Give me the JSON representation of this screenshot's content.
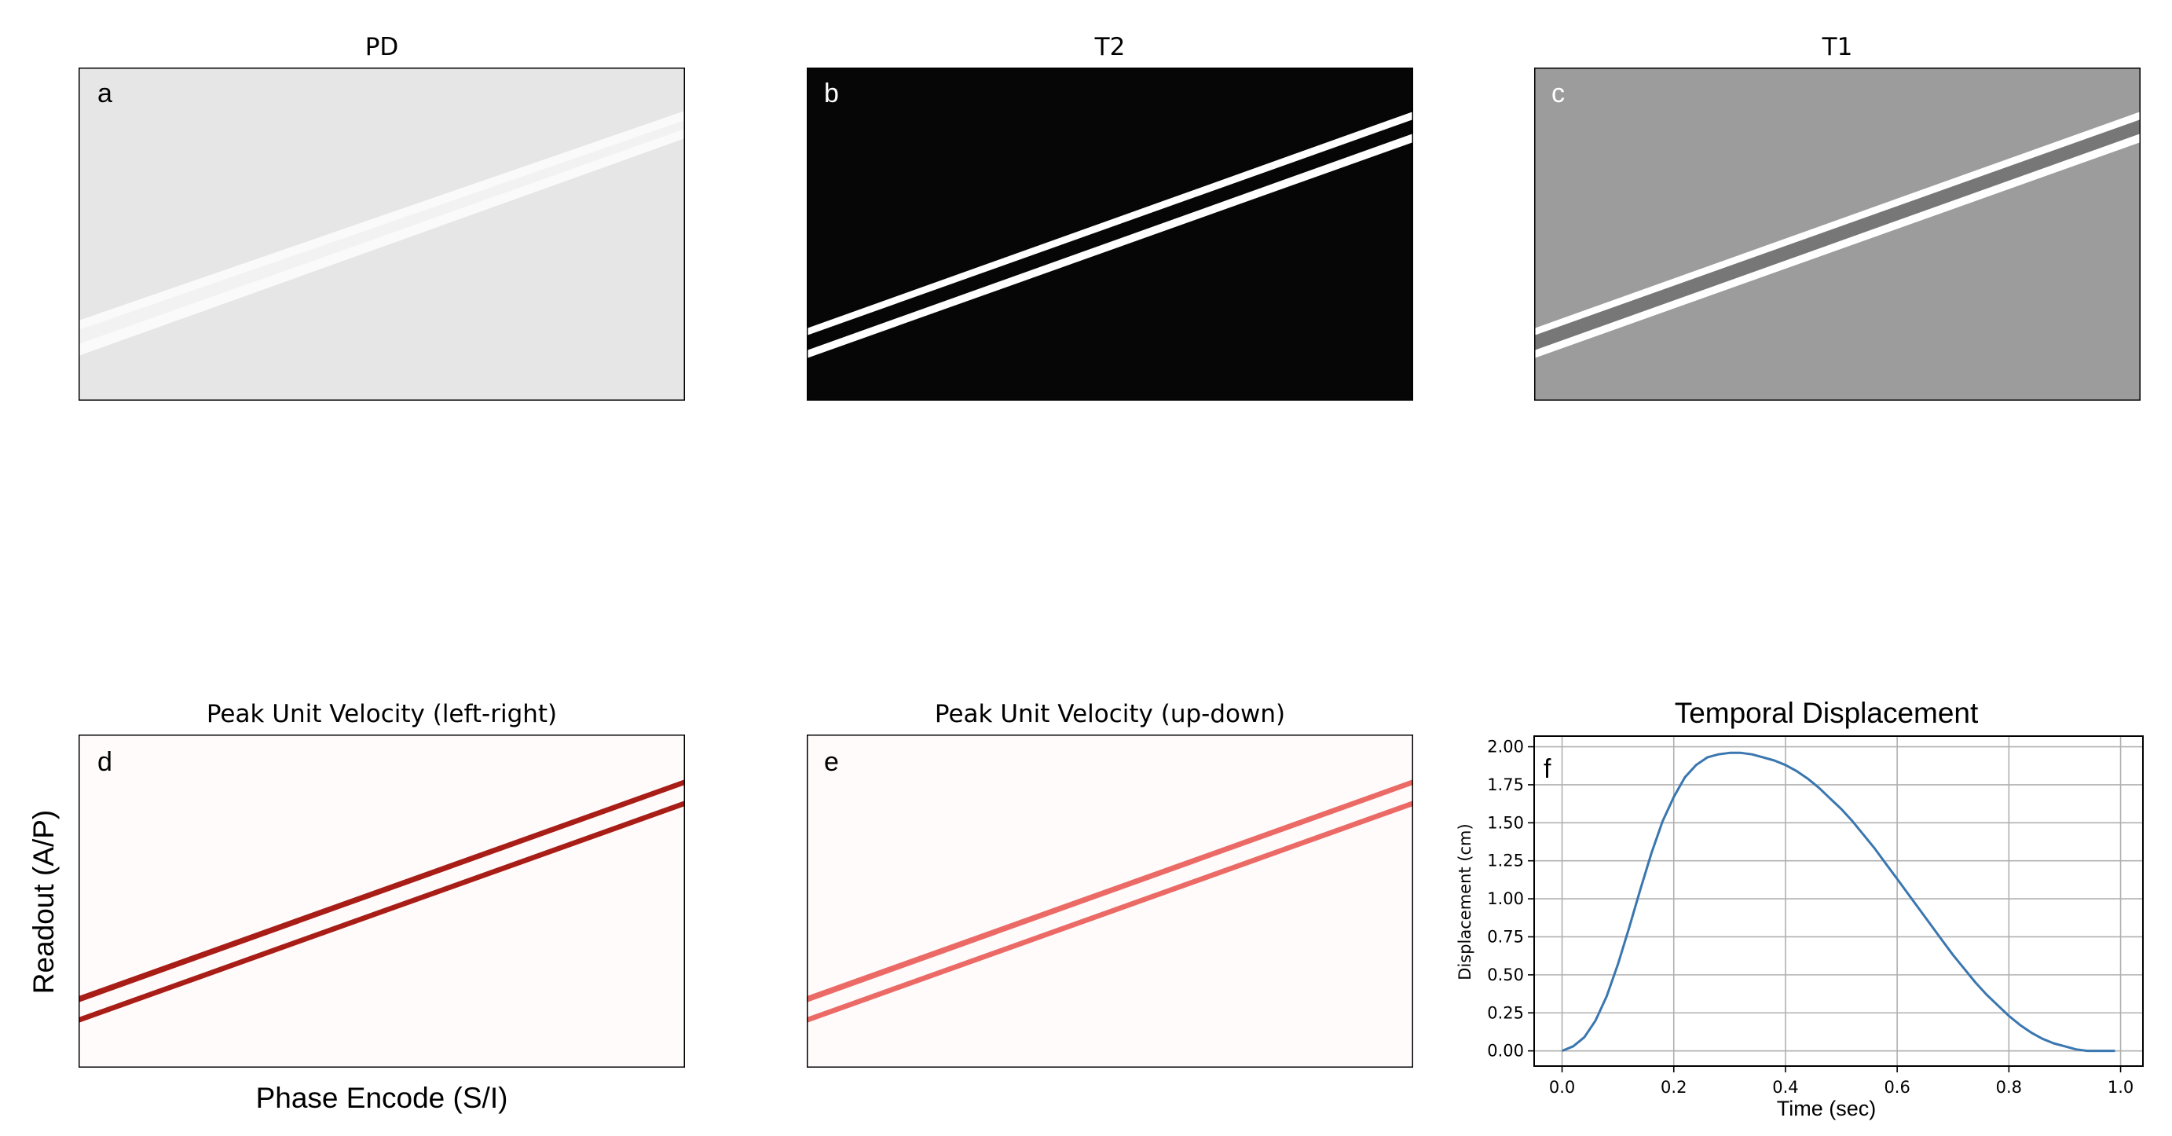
{
  "chart_data": [
    {
      "type": "heatmap",
      "title": "PD",
      "panel_label": "a",
      "background_color": "#e6e6e6",
      "stripe_colors": [
        "#fafafa",
        "#f2f2f2",
        "#fafafa"
      ]
    },
    {
      "type": "heatmap",
      "title": "T2",
      "panel_label": "b",
      "background_color": "#060606",
      "stripe_colors": [
        "#ffffff",
        "#060606",
        "#ffffff"
      ]
    },
    {
      "type": "heatmap",
      "title": "T1",
      "panel_label": "c",
      "background_color": "#9c9c9c",
      "stripe_colors": [
        "#ffffff",
        "#777777",
        "#ffffff"
      ]
    },
    {
      "type": "heatmap",
      "title": "Peak Unit Velocity (left-right)",
      "panel_label": "d",
      "background_color": "#fffbfb",
      "stripe_colors": [
        "#a91d17",
        "#fffbfb",
        "#a91d17"
      ],
      "xlabel": "Phase Encode (S/I)",
      "ylabel": "Readout (A/P)"
    },
    {
      "type": "heatmap",
      "title": "Peak Unit Velocity (up-down)",
      "panel_label": "e",
      "background_color": "#fffbfb",
      "stripe_colors": [
        "#ec6a66",
        "#fffbfb",
        "#ec6a66"
      ]
    },
    {
      "type": "line",
      "title": "Temporal Displacement",
      "panel_label": "f",
      "xlabel": "Time (sec)",
      "ylabel": "Displacement (cm)",
      "xlim": [
        -0.05,
        1.04
      ],
      "ylim": [
        -0.1,
        2.07
      ],
      "xticks": [
        "0.0",
        "0.2",
        "0.4",
        "0.6",
        "0.8",
        "1.0"
      ],
      "yticks": [
        "0.00",
        "0.25",
        "0.50",
        "0.75",
        "1.00",
        "1.25",
        "1.50",
        "1.75",
        "2.00"
      ],
      "grid": true,
      "series": [
        {
          "color": "#3a76af",
          "x": [
            0.0,
            0.02,
            0.04,
            0.06,
            0.08,
            0.1,
            0.12,
            0.14,
            0.16,
            0.18,
            0.2,
            0.22,
            0.24,
            0.26,
            0.28,
            0.3,
            0.32,
            0.34,
            0.36,
            0.38,
            0.4,
            0.42,
            0.44,
            0.46,
            0.48,
            0.5,
            0.52,
            0.54,
            0.56,
            0.58,
            0.6,
            0.62,
            0.64,
            0.66,
            0.68,
            0.7,
            0.72,
            0.74,
            0.76,
            0.78,
            0.8,
            0.82,
            0.84,
            0.86,
            0.88,
            0.9,
            0.92,
            0.94,
            0.96,
            0.98,
            0.99
          ],
          "y": [
            0.0,
            0.03,
            0.09,
            0.2,
            0.36,
            0.57,
            0.81,
            1.06,
            1.3,
            1.51,
            1.67,
            1.8,
            1.88,
            1.93,
            1.95,
            1.96,
            1.96,
            1.95,
            1.93,
            1.91,
            1.88,
            1.84,
            1.79,
            1.73,
            1.66,
            1.59,
            1.51,
            1.42,
            1.33,
            1.23,
            1.13,
            1.03,
            0.93,
            0.83,
            0.73,
            0.63,
            0.54,
            0.45,
            0.37,
            0.3,
            0.23,
            0.17,
            0.12,
            0.08,
            0.05,
            0.03,
            0.01,
            0.0,
            0.0,
            0.0,
            0.0
          ]
        }
      ]
    }
  ]
}
